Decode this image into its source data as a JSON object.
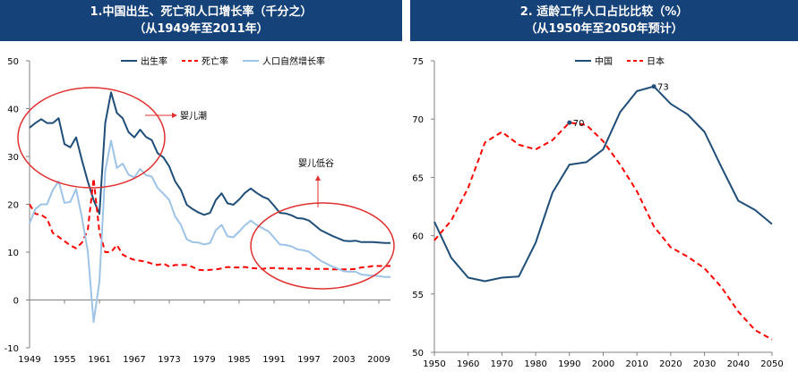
{
  "chart_data": [
    {
      "type": "line",
      "title": "1.中国出生、死亡和人口增长率（千分之）",
      "subtitle": "（从1949年至2011年）",
      "x_tick_labels": [
        "1949",
        "1955",
        "1961",
        "1967",
        "1973",
        "1979",
        "1985",
        "1991",
        "1997",
        "2003",
        "2009"
      ],
      "x_range": [
        1949,
        2011
      ],
      "y_ticks": [
        "50",
        "40",
        "30",
        "20",
        "10",
        "0",
        "-10"
      ],
      "ylim": [
        -10,
        50
      ],
      "grid": false,
      "legend_position": "top",
      "series": [
        {
          "name": "出生率",
          "style": "solid",
          "color": "#1f4e79",
          "x": [
            1949,
            1950,
            1951,
            1952,
            1953,
            1954,
            1955,
            1956,
            1957,
            1958,
            1959,
            1960,
            1961,
            1962,
            1963,
            1964,
            1965,
            1966,
            1967,
            1968,
            1969,
            1970,
            1971,
            1972,
            1973,
            1974,
            1975,
            1976,
            1977,
            1978,
            1979,
            1980,
            1981,
            1982,
            1983,
            1984,
            1985,
            1986,
            1987,
            1988,
            1989,
            1990,
            1991,
            1992,
            1993,
            1994,
            1995,
            1996,
            1997,
            1998,
            1999,
            2000,
            2001,
            2002,
            2003,
            2004,
            2005,
            2006,
            2007,
            2008,
            2009,
            2010,
            2011
          ],
          "values": [
            36.0,
            37.0,
            37.8,
            37.0,
            37.0,
            38.0,
            32.6,
            31.9,
            34.0,
            29.2,
            24.8,
            20.9,
            18.0,
            37.0,
            43.4,
            39.1,
            38.0,
            35.1,
            34.0,
            35.6,
            34.1,
            33.4,
            30.7,
            29.8,
            27.9,
            24.8,
            23.0,
            19.9,
            19.0,
            18.3,
            17.8,
            18.2,
            20.9,
            22.3,
            20.2,
            19.9,
            21.0,
            22.4,
            23.3,
            22.4,
            21.6,
            21.1,
            19.7,
            18.2,
            18.1,
            17.7,
            17.1,
            17.0,
            16.6,
            15.6,
            14.6,
            14.0,
            13.4,
            12.9,
            12.4,
            12.3,
            12.4,
            12.1,
            12.1,
            12.1,
            12.0,
            11.9,
            11.9
          ]
        },
        {
          "name": "死亡率",
          "style": "dashed",
          "color": "#ff0000",
          "x": [
            1949,
            1950,
            1951,
            1952,
            1953,
            1954,
            1955,
            1956,
            1957,
            1958,
            1959,
            1960,
            1961,
            1962,
            1963,
            1964,
            1965,
            1966,
            1967,
            1968,
            1969,
            1970,
            1971,
            1972,
            1973,
            1974,
            1975,
            1976,
            1977,
            1978,
            1979,
            1980,
            1981,
            1982,
            1983,
            1984,
            1985,
            1986,
            1987,
            1988,
            1989,
            1990,
            1991,
            1992,
            1993,
            1994,
            1995,
            1996,
            1997,
            1998,
            1999,
            2000,
            2001,
            2002,
            2003,
            2004,
            2005,
            2006,
            2007,
            2008,
            2009,
            2010,
            2011
          ],
          "values": [
            20.0,
            18.0,
            17.8,
            17.0,
            14.0,
            13.2,
            12.3,
            11.4,
            10.8,
            12.0,
            14.6,
            25.4,
            14.2,
            10.0,
            10.0,
            11.5,
            9.5,
            8.8,
            8.4,
            8.2,
            8.0,
            7.6,
            7.3,
            7.6,
            7.0,
            7.3,
            7.3,
            7.3,
            6.9,
            6.3,
            6.2,
            6.3,
            6.4,
            6.6,
            6.9,
            6.8,
            6.8,
            6.9,
            6.7,
            6.6,
            6.5,
            6.7,
            6.7,
            6.6,
            6.6,
            6.5,
            6.6,
            6.6,
            6.5,
            6.5,
            6.5,
            6.5,
            6.4,
            6.4,
            6.4,
            6.4,
            6.5,
            6.8,
            6.9,
            7.1,
            7.1,
            7.1,
            7.1
          ]
        },
        {
          "name": "人口自然增长率",
          "style": "solid",
          "color": "#9dc3e6",
          "x": [
            1949,
            1950,
            1951,
            1952,
            1953,
            1954,
            1955,
            1956,
            1957,
            1958,
            1959,
            1960,
            1961,
            1962,
            1963,
            1964,
            1965,
            1966,
            1967,
            1968,
            1969,
            1970,
            1971,
            1972,
            1973,
            1974,
            1975,
            1976,
            1977,
            1978,
            1979,
            1980,
            1981,
            1982,
            1983,
            1984,
            1985,
            1986,
            1987,
            1988,
            1989,
            1990,
            1991,
            1992,
            1993,
            1994,
            1995,
            1996,
            1997,
            1998,
            1999,
            2000,
            2001,
            2002,
            2003,
            2004,
            2005,
            2006,
            2007,
            2008,
            2009,
            2010,
            2011
          ],
          "values": [
            16.0,
            19.0,
            20.0,
            20.0,
            23.0,
            24.8,
            20.3,
            20.5,
            23.2,
            17.2,
            10.2,
            -4.6,
            3.8,
            27.0,
            33.3,
            27.6,
            28.5,
            26.2,
            25.6,
            27.4,
            26.1,
            25.8,
            23.4,
            22.2,
            20.9,
            17.5,
            15.7,
            12.7,
            12.1,
            12.0,
            11.6,
            11.9,
            14.6,
            15.7,
            13.3,
            13.1,
            14.3,
            15.6,
            16.6,
            15.7,
            15.0,
            14.4,
            13.0,
            11.6,
            11.5,
            11.2,
            10.6,
            10.4,
            10.1,
            9.1,
            8.2,
            7.6,
            7.0,
            6.5,
            6.0,
            5.9,
            5.9,
            5.3,
            5.2,
            5.1,
            5.0,
            4.8,
            4.8
          ]
        }
      ],
      "annotations": [
        "婴儿潮",
        "婴儿低谷"
      ]
    },
    {
      "type": "line",
      "title": "2. 适龄工作人口占比比较（%）",
      "subtitle": "（从1950年至2050年预计）",
      "x_tick_labels": [
        "1950",
        "1960",
        "1970",
        "1980",
        "1990",
        "2000",
        "2010",
        "2020",
        "2030",
        "2040",
        "2050"
      ],
      "x_range": [
        1950,
        2050
      ],
      "y_ticks": [
        "75",
        "70",
        "65",
        "60",
        "55",
        "50"
      ],
      "ylim": [
        50,
        75
      ],
      "grid": false,
      "legend_position": "top",
      "series": [
        {
          "name": "中国",
          "style": "solid",
          "color": "#1f4e79",
          "x": [
            1950,
            1955,
            1960,
            1965,
            1970,
            1975,
            1980,
            1985,
            1990,
            1995,
            2000,
            2005,
            2010,
            2015,
            2020,
            2025,
            2030,
            2035,
            2040,
            2045,
            2050
          ],
          "values": [
            61.2,
            58.1,
            56.4,
            56.1,
            56.4,
            56.5,
            59.4,
            63.7,
            66.1,
            66.3,
            67.4,
            70.6,
            72.4,
            72.8,
            71.3,
            70.4,
            68.9,
            65.9,
            63.0,
            62.2,
            61.0
          ]
        },
        {
          "name": "日本",
          "style": "dashed",
          "color": "#ff0000",
          "x": [
            1950,
            1955,
            1960,
            1965,
            1970,
            1975,
            1980,
            1985,
            1990,
            1995,
            2000,
            2005,
            2010,
            2015,
            2020,
            2025,
            2030,
            2035,
            2040,
            2045,
            2050
          ],
          "values": [
            59.6,
            61.3,
            64.1,
            68.0,
            68.9,
            67.8,
            67.4,
            68.2,
            69.7,
            69.5,
            68.1,
            66.1,
            63.8,
            60.8,
            59.0,
            58.2,
            57.2,
            55.6,
            53.5,
            51.9,
            51.1
          ]
        }
      ],
      "point_labels": [
        {
          "series": "中国",
          "x": 2015,
          "value": 72.8,
          "text": "73"
        },
        {
          "series": "日本",
          "x": 1990,
          "value": 69.7,
          "text": "70"
        }
      ]
    }
  ]
}
